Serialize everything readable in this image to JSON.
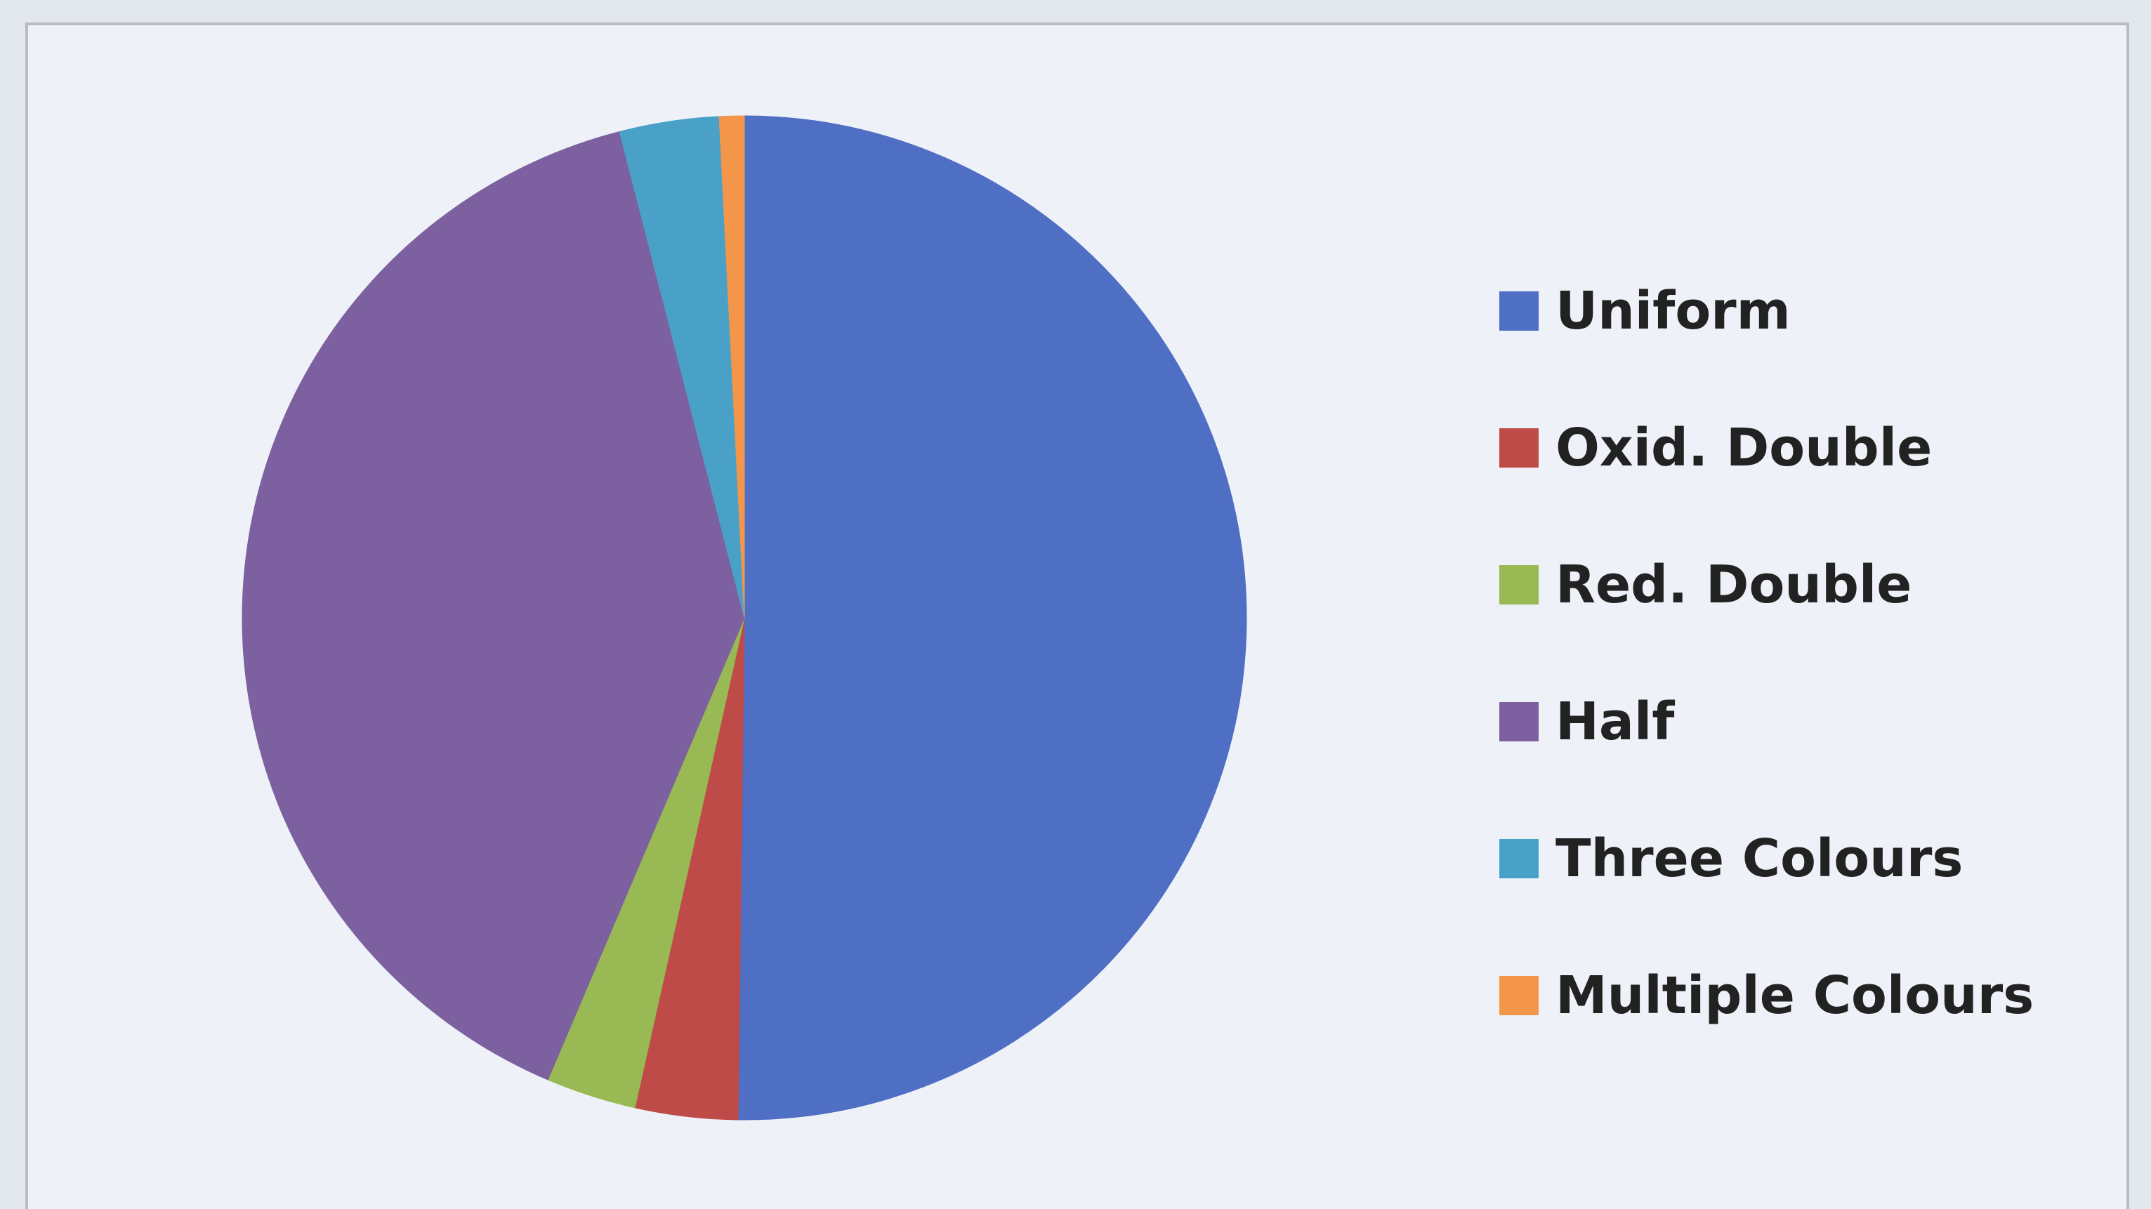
{
  "chart_data": {
    "type": "pie",
    "title": "",
    "categories": [
      "Uniform",
      "Oxid. Double",
      "Red. Double",
      "Half",
      "Three Colours",
      "Multiple Colours"
    ],
    "values": [
      50.2,
      3.3,
      2.9,
      39.6,
      3.2,
      0.8
    ],
    "unit": "%",
    "legend_position": "right",
    "start_angle": "12 o'clock",
    "direction": "clockwise",
    "colors": [
      "#4f6fc4",
      "#be4b48",
      "#98b954",
      "#7d60a0",
      "#4aa1c7",
      "#f4964a"
    ]
  }
}
